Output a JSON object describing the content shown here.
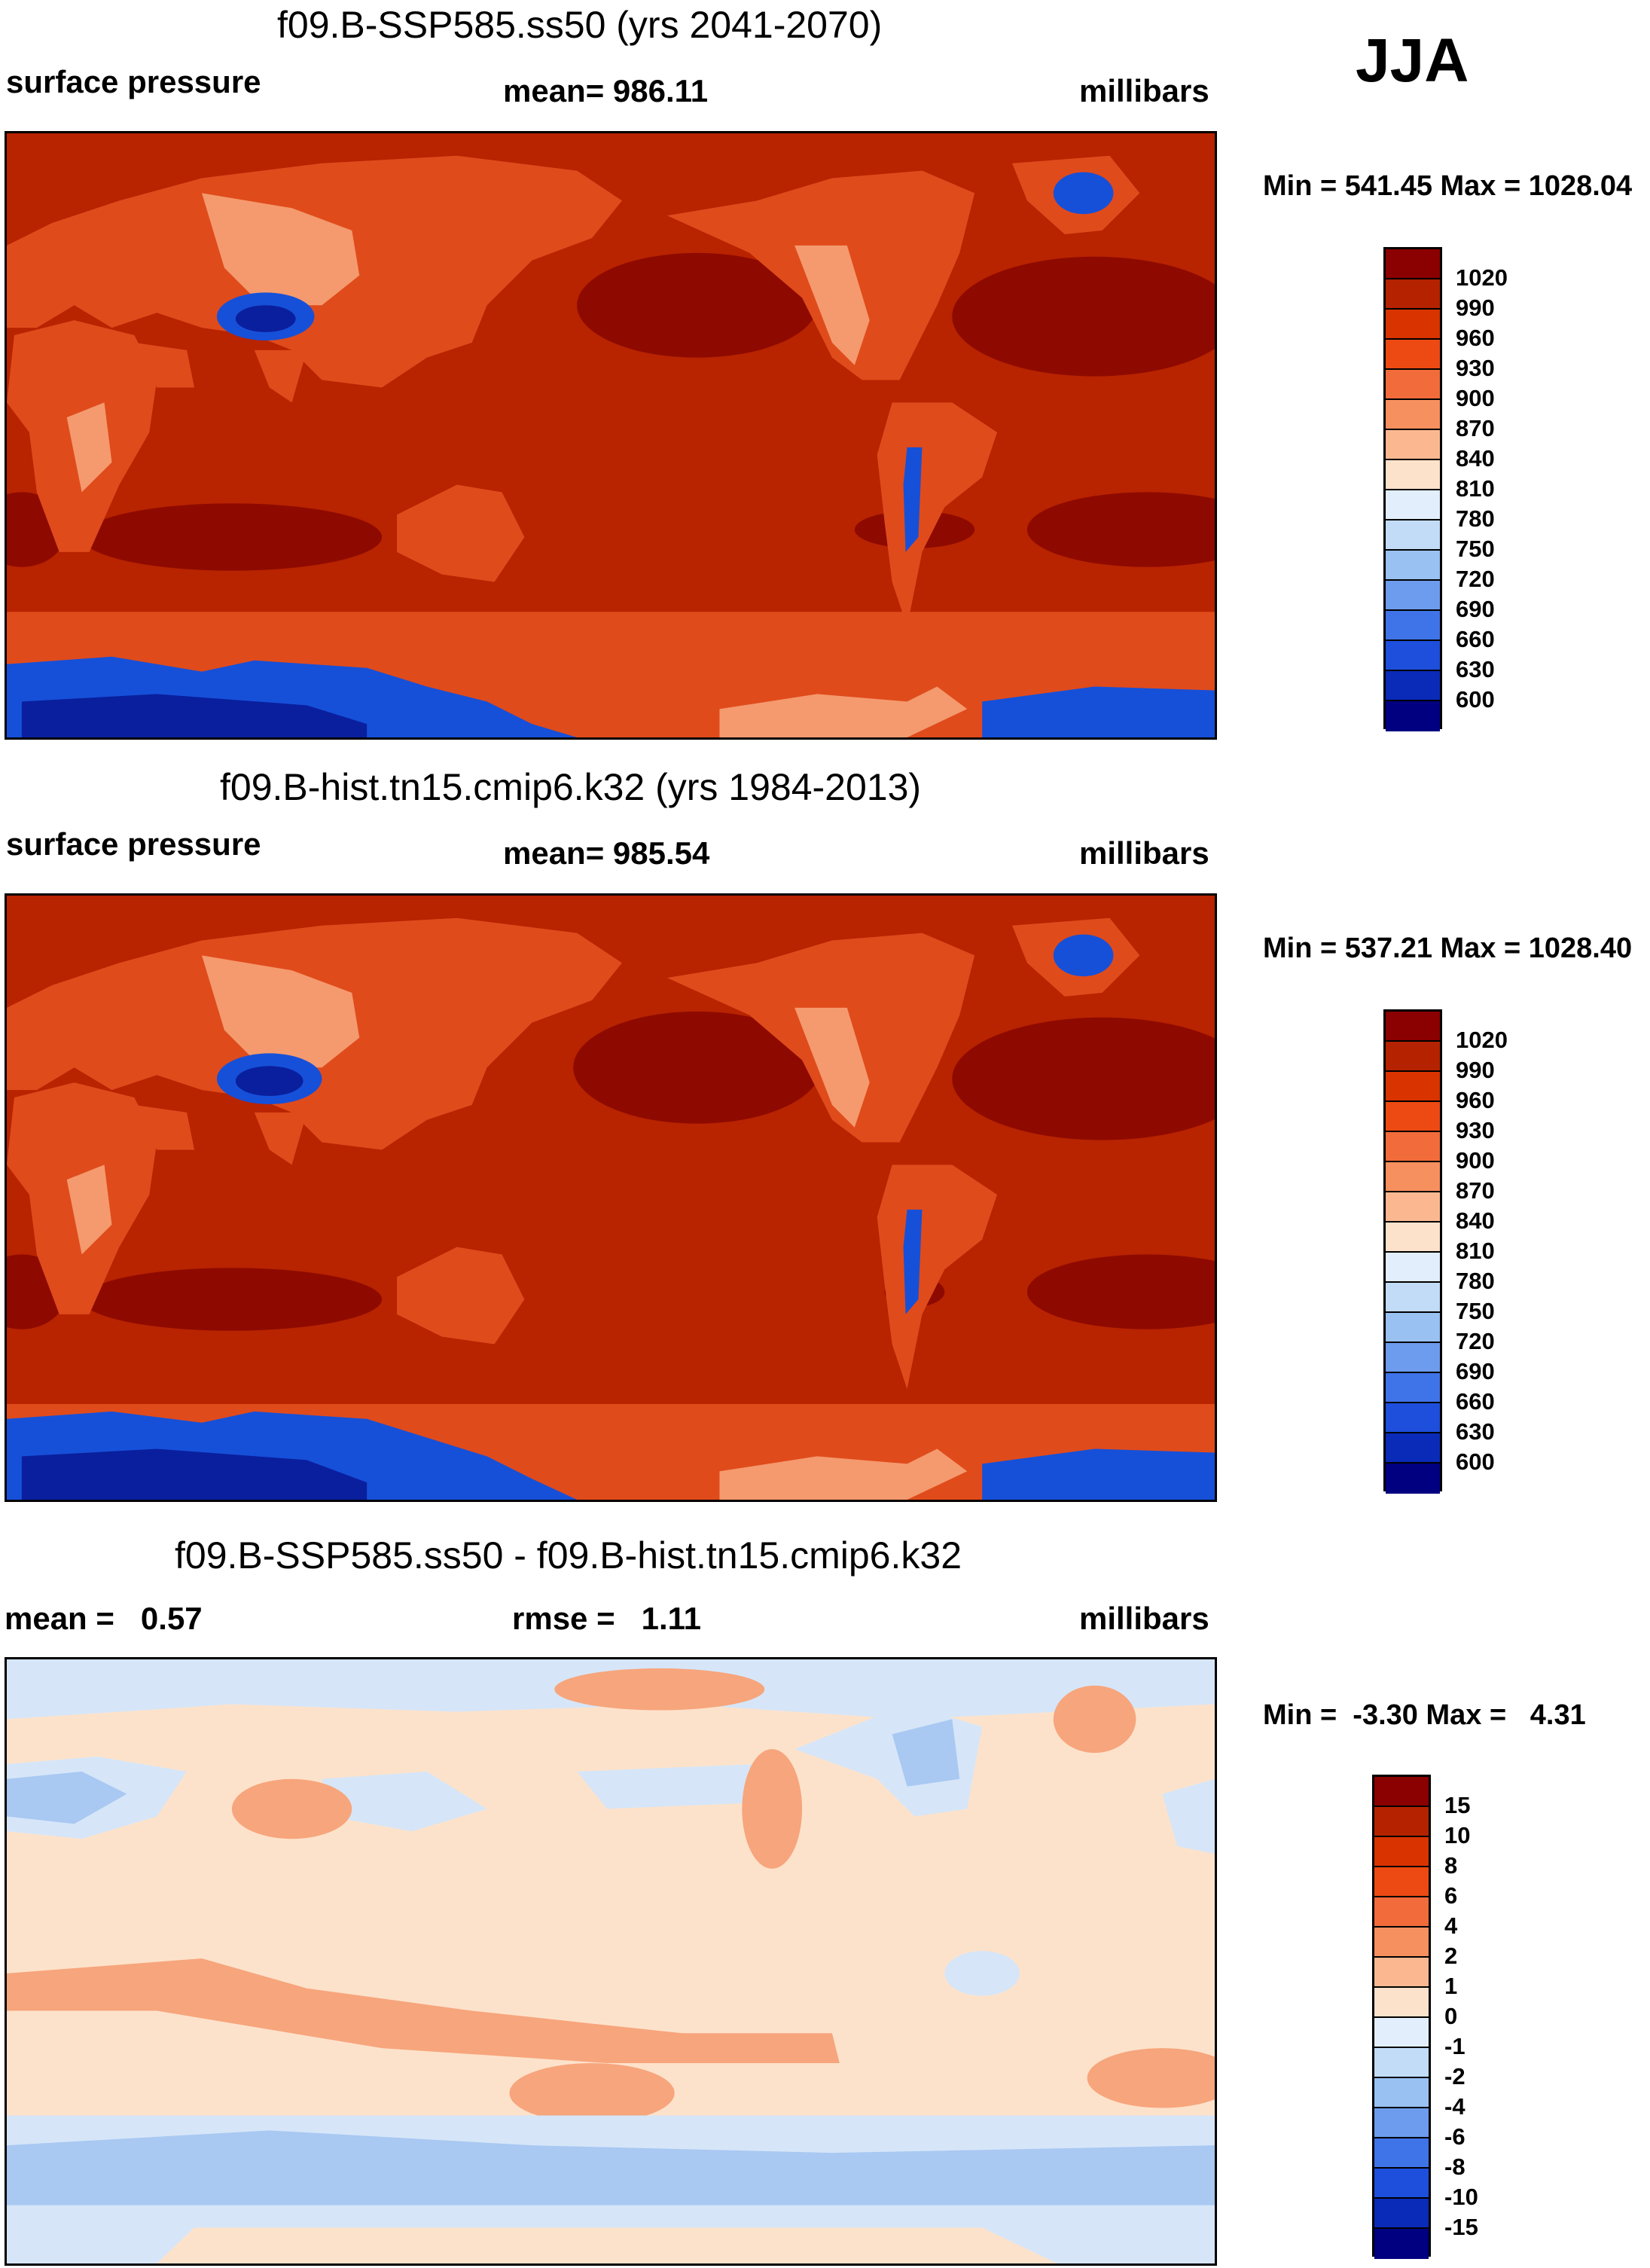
{
  "season": "JJA",
  "panels": [
    {
      "title": "f09.B-SSP585.ss50 (yrs 2041-2070)",
      "left_label": "surface pressure",
      "center_label": "mean= 986.11",
      "right_label": "millibars",
      "minmax": "Min = 541.45 Max = 1028.04",
      "map_description": "surface pressure field, future period"
    },
    {
      "title": "f09.B-hist.tn15.cmip6.k32 (yrs 1984-2013)",
      "left_label": "surface pressure",
      "center_label": "mean= 985.54",
      "right_label": "millibars",
      "minmax": "Min = 537.21 Max = 1028.40",
      "map_description": "surface pressure field, historical period"
    },
    {
      "title": "f09.B-SSP585.ss50 - f09.B-hist.tn15.cmip6.k32",
      "left_label": "mean =   0.57",
      "center_label": "rmse =   1.11",
      "right_label": "millibars",
      "minmax": "Min =  -3.30 Max =   4.31",
      "map_description": "difference field"
    }
  ],
  "colorbar_abs": {
    "labels": [
      "1020",
      "990",
      "960",
      "930",
      "900",
      "870",
      "840",
      "810",
      "780",
      "750",
      "720",
      "690",
      "660",
      "630",
      "600"
    ],
    "colors": [
      "#8b0000",
      "#b52200",
      "#d93300",
      "#ec4a12",
      "#f26b3a",
      "#f7905f",
      "#fbb890",
      "#fde2cb",
      "#e2eefb",
      "#c2dcf7",
      "#99c1f2",
      "#6d9cee",
      "#3f73e8",
      "#1d4fdc",
      "#0a2ab8",
      "#000080"
    ]
  },
  "colorbar_diff": {
    "labels": [
      "15",
      "10",
      "8",
      "6",
      "4",
      "2",
      "1",
      "0",
      "-1",
      "-2",
      "-4",
      "-6",
      "-8",
      "-10",
      "-15"
    ],
    "colors": [
      "#8b0000",
      "#b52200",
      "#d93300",
      "#ec4a12",
      "#f26b3a",
      "#f7905f",
      "#fbb890",
      "#fde2cb",
      "#e2eefb",
      "#c2dcf7",
      "#99c1f2",
      "#6d9cee",
      "#3f73e8",
      "#1d4fdc",
      "#0a2ab8",
      "#000080"
    ]
  },
  "colors": {
    "ocean_abs": "#b82300",
    "high_abs": "#8e0a00",
    "land_abs": "#e04b1c",
    "land_low_abs": "#f49a6e",
    "ice_abs": "#1650d8",
    "ice_deep_abs": "#0a1f9e",
    "diff_base": "#fde2cb",
    "diff_pos": "#f7a57c",
    "diff_neg": "#d6e6f8",
    "diff_neg2": "#a9c8f2",
    "coast": "#000000"
  }
}
